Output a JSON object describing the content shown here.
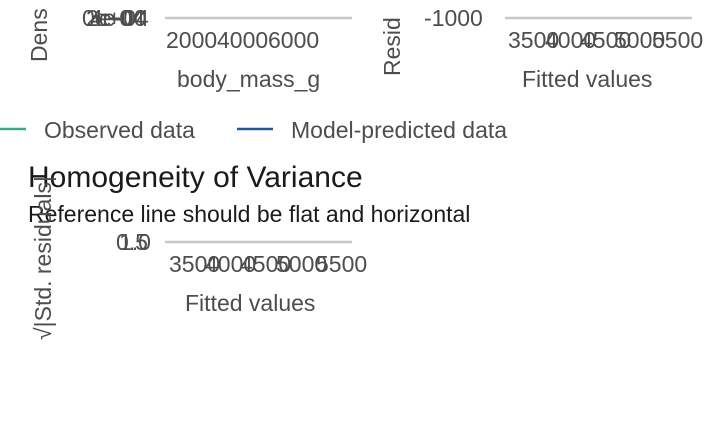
{
  "chart_data": [
    {
      "type": "line",
      "panel": "posterior-predictive-check",
      "xlabel": "body_mass_g",
      "ylabel": "Dens",
      "x_ticks": [
        "2000",
        "4000",
        "6000"
      ],
      "y_ticks": [
        "0e+00",
        "2e-04",
        "4e-04"
      ],
      "legend": [
        "Observed data",
        "Model-predicted data"
      ],
      "legend_colors": [
        "#3aaa7f",
        "#1f5a99"
      ],
      "legend_position": "bottom"
    },
    {
      "type": "scatter",
      "panel": "linearity",
      "xlabel": "Fitted values",
      "ylabel": "Resid",
      "x_ticks": [
        "3500",
        "4000",
        "4500",
        "5000",
        "5500"
      ],
      "y_ticks": [
        "-1000"
      ]
    },
    {
      "type": "scatter",
      "panel": "homogeneity-of-variance",
      "title": "Homogeneity of Variance",
      "subtitle": "Reference line should be flat and horizontal",
      "xlabel": "Fitted values",
      "ylabel": "√|Std. residuals|",
      "x_ticks": [
        "3500",
        "4000",
        "4500",
        "5000",
        "5500"
      ],
      "y_ticks": [
        "0.5",
        "1.0"
      ],
      "gridline_color": "#c8c8c8"
    }
  ]
}
